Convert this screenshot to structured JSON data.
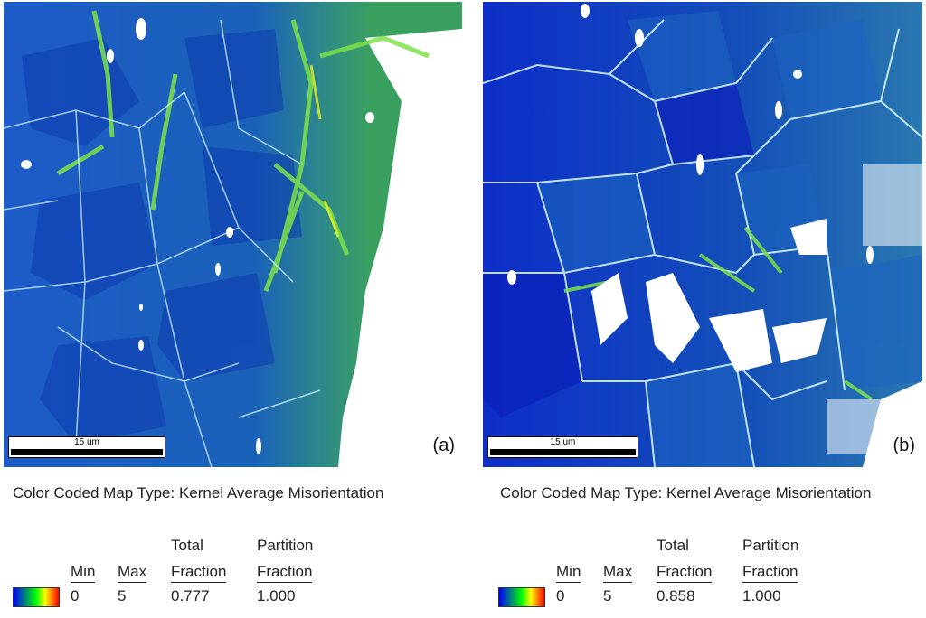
{
  "panels": [
    {
      "label": "(a)",
      "scale_bar": "15 um",
      "map_title": "Color Coded Map Type: Kernel Average Misorientation",
      "legend": {
        "min_header": "Min",
        "max_header": "Max",
        "total_header_1": "Total",
        "total_header_2": "Fraction",
        "partition_header_1": "Partition",
        "partition_header_2": "Fraction",
        "min": "0",
        "max": "5",
        "total_fraction": "0.777",
        "partition_fraction": "1.000"
      }
    },
    {
      "label": "(b)",
      "scale_bar": "15 um",
      "map_title": "Color Coded Map Type: Kernel Average Misorientation",
      "legend": {
        "min_header": "Min",
        "max_header": "Max",
        "total_header_1": "Total",
        "total_header_2": "Fraction",
        "partition_header_1": "Partition",
        "partition_header_2": "Fraction",
        "min": "0",
        "max": "5",
        "total_fraction": "0.858",
        "partition_fraction": "1.000"
      }
    }
  ],
  "colors": {
    "grain_blue": "#1246c8",
    "grain_dark": "#0a2ea8",
    "boundary_green": "#7fe040",
    "high_yellow": "#e8f020",
    "void_white": "#ffffff"
  }
}
